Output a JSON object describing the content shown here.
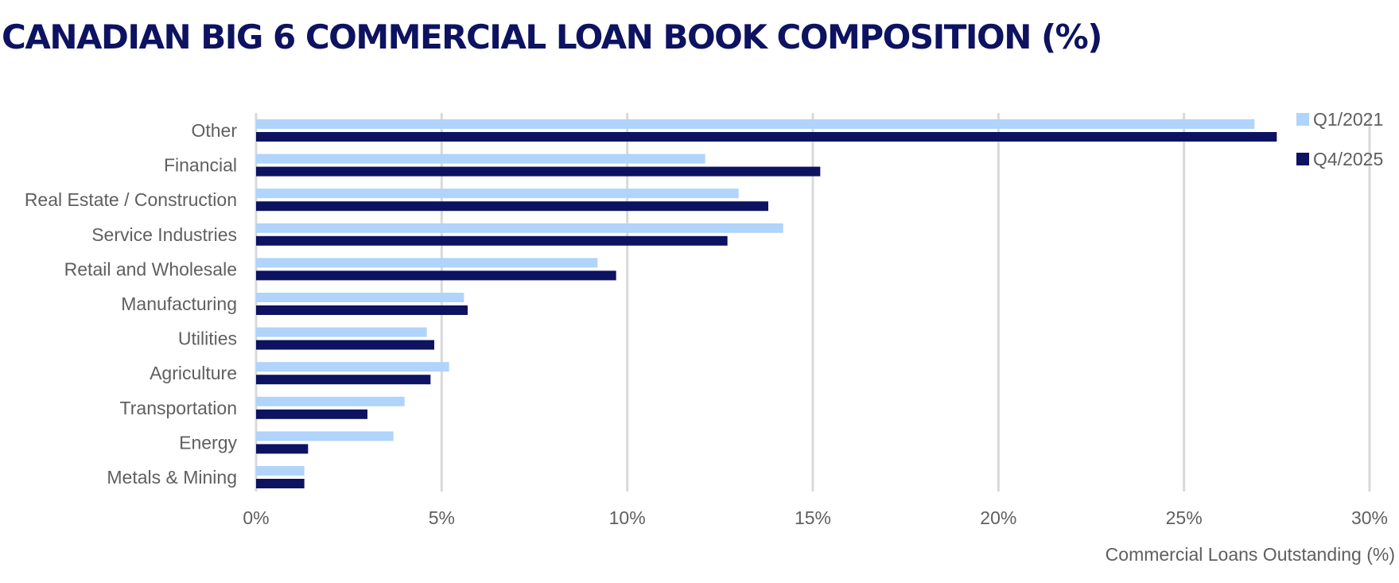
{
  "title": "CANADIAN BIG 6 COMMERCIAL LOAN BOOK COMPOSITION (%)",
  "colors": {
    "title": "#0d1360",
    "Q1/2021": "#b0d4fb",
    "Q4/2025": "#0d1360",
    "gridline": "#d9d9d9",
    "text": "#5f5f5f"
  },
  "chart_data": {
    "type": "bar",
    "orientation": "horizontal",
    "title": "CANADIAN BIG 6 COMMERCIAL LOAN BOOK COMPOSITION (%)",
    "xlabel": "Commercial Loans Outstanding (%)",
    "ylabel": "",
    "xlim": [
      0,
      30
    ],
    "xticks": [
      0,
      5,
      10,
      15,
      20,
      25,
      30
    ],
    "xtick_labels": [
      "0%",
      "5%",
      "10%",
      "15%",
      "20%",
      "25%",
      "30%"
    ],
    "grid": "vertical",
    "legend_position": "top-right",
    "categories": [
      "Other",
      "Financial",
      "Real Estate / Construction",
      "Service Industries",
      "Retail and Wholesale",
      "Manufacturing",
      "Utilities",
      "Agriculture",
      "Transportation",
      "Energy",
      "Metals & Mining"
    ],
    "series": [
      {
        "name": "Q1/2021",
        "color": "#b0d4fb",
        "values": [
          26.9,
          12.1,
          13.0,
          14.2,
          9.2,
          5.6,
          4.6,
          5.2,
          4.0,
          3.7,
          1.3
        ]
      },
      {
        "name": "Q4/2025",
        "color": "#0d1360",
        "values": [
          27.5,
          15.2,
          13.8,
          12.7,
          9.7,
          5.7,
          4.8,
          4.7,
          3.0,
          1.4,
          1.3
        ]
      }
    ]
  }
}
